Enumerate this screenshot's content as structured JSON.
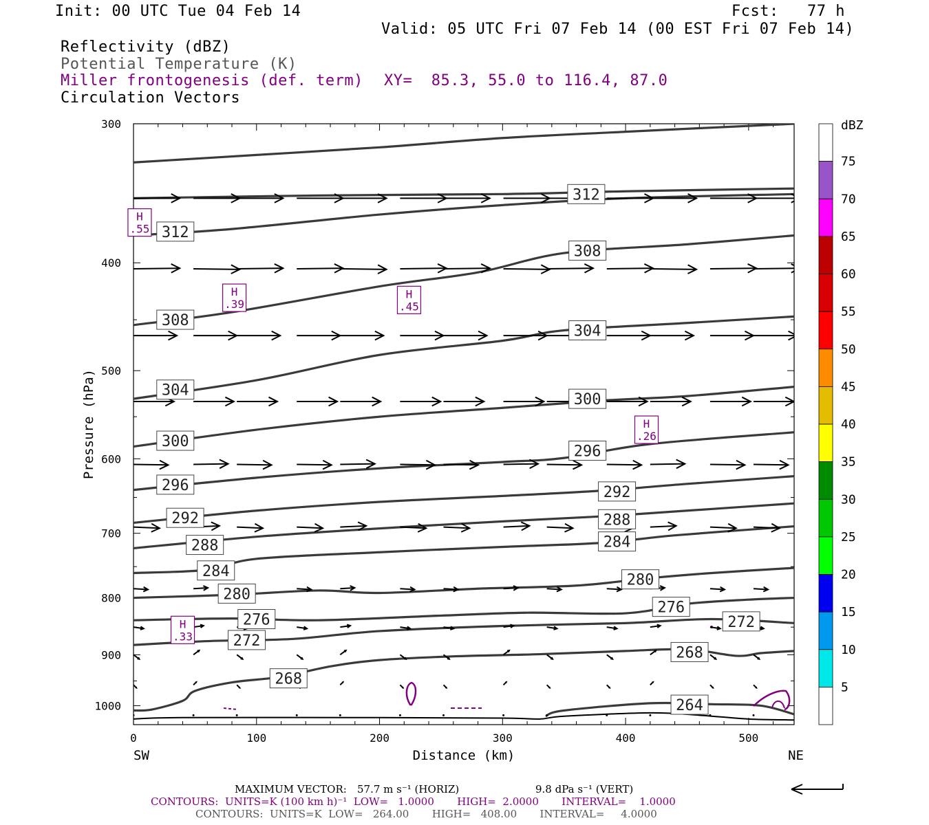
{
  "header": {
    "init": "Init: 00 UTC Tue 04 Feb 14",
    "fcst": "Fcst:   77 h",
    "valid": "Valid: 05 UTC Fri 07 Feb 14 (00 EST Fri 07 Feb 14)",
    "field1": "Reflectivity (dBZ)",
    "field2": "Potential Temperature (K)",
    "field3": "Miller frontogenesis (def. term)",
    "xy": "XY=  85.3, 55.0 to 116.4, 87.0",
    "field4": "Circulation Vectors"
  },
  "footer": {
    "max_vector_label": "MAXIMUM VECTOR:",
    "max_vector_horiz": "57.7 m s⁻¹ (HORIZ)",
    "max_vector_vert": "9.8 dPa s⁻¹ (VERT)",
    "contours1": "CONTOURS:  UNITS=K (100 km h)⁻¹  LOW=   1.0000       HIGH=  2.0000       INTERVAL=    1.0000",
    "contours2": "CONTOURS:  UNITS=K  LOW=   264.00       HIGH=   408.00       INTERVAL=     4.0000"
  },
  "colors": {
    "theta": "#3a3a3a",
    "fronto": "#800080",
    "vector": "#000000"
  },
  "chart_data": {
    "type": "cross-section",
    "xlabel": "Distance (km)",
    "ylabel": "Pressure (hPa)",
    "xlim": [
      0,
      537
    ],
    "ylim": [
      1040,
      300
    ],
    "y_scale": "log",
    "x_ticks": [
      0,
      100,
      200,
      300,
      400,
      500
    ],
    "y_ticks": [
      300,
      400,
      500,
      600,
      700,
      800,
      900,
      1000
    ],
    "x_end_labels": [
      "SW",
      "NE"
    ],
    "colorbar": {
      "unit": "dBZ",
      "levels": [
        "5",
        "10",
        "15",
        "20",
        "25",
        "30",
        "35",
        "40",
        "45",
        "50",
        "55",
        "60",
        "65",
        "70",
        "75"
      ],
      "colors": [
        "#ffffff",
        "#00e8e8",
        "#0099ee",
        "#0000f0",
        "#00ff00",
        "#00c800",
        "#008c00",
        "#ffff00",
        "#e6bc00",
        "#ff8c00",
        "#ff0000",
        "#d80000",
        "#bc0000",
        "#ff00ff",
        "#9855c8"
      ]
    },
    "theta_contours": [
      {
        "label": "312",
        "points": [
          [
            0,
            325
          ],
          [
            100,
            320
          ],
          [
            200,
            315
          ],
          [
            300,
            309
          ],
          [
            400,
            305
          ],
          [
            537,
            300
          ]
        ]
      },
      {
        "label": "312",
        "points": [
          [
            0,
            350
          ],
          [
            150,
            348
          ],
          [
            300,
            347
          ],
          [
            400,
            345
          ],
          [
            537,
            343
          ]
        ]
      },
      {
        "label": "308",
        "points": [
          [
            0,
            378
          ],
          [
            80,
            373
          ],
          [
            200,
            362
          ],
          [
            300,
            355
          ],
          [
            400,
            350
          ],
          [
            537,
            347
          ]
        ]
      },
      {
        "label": "308",
        "points": [
          [
            0,
            455
          ],
          [
            80,
            443
          ],
          [
            200,
            420
          ],
          [
            280,
            408
          ],
          [
            350,
            392
          ],
          [
            450,
            385
          ],
          [
            537,
            378
          ]
        ]
      },
      {
        "label": "304",
        "points": [
          [
            0,
            530
          ],
          [
            100,
            510
          ],
          [
            200,
            484
          ],
          [
            300,
            470
          ],
          [
            350,
            460
          ],
          [
            450,
            453
          ],
          [
            537,
            447
          ]
        ]
      },
      {
        "label": "300",
        "points": [
          [
            0,
            585
          ],
          [
            100,
            565
          ],
          [
            200,
            550
          ],
          [
            300,
            540
          ],
          [
            380,
            532
          ],
          [
            450,
            527
          ],
          [
            537,
            517
          ]
        ]
      },
      {
        "label": "296",
        "points": [
          [
            0,
            640
          ],
          [
            100,
            624
          ],
          [
            200,
            612
          ],
          [
            300,
            604
          ],
          [
            350,
            599
          ],
          [
            420,
            582
          ],
          [
            537,
            568
          ]
        ]
      },
      {
        "label": "292",
        "points": [
          [
            0,
            685
          ],
          [
            100,
            668
          ],
          [
            200,
            656
          ],
          [
            300,
            648
          ],
          [
            380,
            641
          ],
          [
            450,
            632
          ],
          [
            537,
            622
          ]
        ]
      },
      {
        "label": "288",
        "points": [
          [
            0,
            722
          ],
          [
            100,
            705
          ],
          [
            200,
            693
          ],
          [
            300,
            683
          ],
          [
            380,
            676
          ],
          [
            450,
            668
          ],
          [
            537,
            658
          ]
        ]
      },
      {
        "label": "284",
        "points": [
          [
            0,
            760
          ],
          [
            60,
            755
          ],
          [
            100,
            738
          ],
          [
            200,
            728
          ],
          [
            300,
            720
          ],
          [
            380,
            714
          ],
          [
            440,
            703
          ],
          [
            537,
            690
          ]
        ]
      },
      {
        "label": "280",
        "points": [
          [
            0,
            800
          ],
          [
            80,
            795
          ],
          [
            150,
            788
          ],
          [
            200,
            792
          ],
          [
            280,
            785
          ],
          [
            360,
            780
          ],
          [
            420,
            768
          ],
          [
            470,
            760
          ],
          [
            537,
            752
          ]
        ]
      },
      {
        "label": "276",
        "points": [
          [
            0,
            838
          ],
          [
            80,
            835
          ],
          [
            150,
            838
          ],
          [
            250,
            830
          ],
          [
            320,
            825
          ],
          [
            400,
            826
          ],
          [
            450,
            810
          ],
          [
            500,
            803
          ],
          [
            537,
            800
          ]
        ]
      },
      {
        "label": "272",
        "points": [
          [
            0,
            882
          ],
          [
            60,
            875
          ],
          [
            130,
            871
          ],
          [
            200,
            857
          ],
          [
            300,
            848
          ],
          [
            400,
            843
          ],
          [
            470,
            836
          ],
          [
            537,
            843
          ]
        ]
      },
      {
        "label": "268",
        "points": [
          [
            0,
            1010
          ],
          [
            15,
            1008
          ],
          [
            40,
            990
          ],
          [
            50,
            970
          ],
          [
            80,
            953
          ],
          [
            120,
            942
          ],
          [
            160,
            922
          ],
          [
            200,
            910
          ],
          [
            260,
            903
          ],
          [
            330,
            899
          ],
          [
            400,
            893
          ],
          [
            450,
            890
          ],
          [
            490,
            902
          ],
          [
            510,
            897
          ],
          [
            537,
            893
          ]
        ]
      },
      {
        "label": "264",
        "points": [
          [
            335,
            1022
          ],
          [
            350,
            1010
          ],
          [
            420,
            995
          ],
          [
            470,
            997
          ],
          [
            510,
            1000
          ],
          [
            537,
            1018
          ]
        ]
      },
      {
        "label": "",
        "points": [
          [
            0,
            1028
          ],
          [
            40,
            1025
          ],
          [
            200,
            1025
          ],
          [
            300,
            1026
          ],
          [
            330,
            1028
          ],
          [
            350,
            1022
          ],
          [
            420,
            1015
          ],
          [
            460,
            1020
          ],
          [
            500,
            1028
          ],
          [
            537,
            1030
          ]
        ]
      }
    ],
    "theta_label_positions_km": [
      {
        "label": "312",
        "x": 368,
        "p": 347
      },
      {
        "label": "312",
        "x": 34,
        "p": 375
      },
      {
        "label": "308",
        "x": 369,
        "p": 390
      },
      {
        "label": "308",
        "x": 34,
        "p": 450
      },
      {
        "label": "304",
        "x": 369,
        "p": 460
      },
      {
        "label": "304",
        "x": 34,
        "p": 520
      },
      {
        "label": "300",
        "x": 369,
        "p": 530
      },
      {
        "label": "300",
        "x": 34,
        "p": 578
      },
      {
        "label": "296",
        "x": 369,
        "p": 590
      },
      {
        "label": "296",
        "x": 34,
        "p": 633
      },
      {
        "label": "292",
        "x": 393,
        "p": 642
      },
      {
        "label": "292",
        "x": 42,
        "p": 678
      },
      {
        "label": "288",
        "x": 393,
        "p": 680
      },
      {
        "label": "288",
        "x": 58,
        "p": 717
      },
      {
        "label": "284",
        "x": 393,
        "p": 712
      },
      {
        "label": "284",
        "x": 67,
        "p": 756
      },
      {
        "label": "280",
        "x": 412,
        "p": 770
      },
      {
        "label": "280",
        "x": 84,
        "p": 793
      },
      {
        "label": "276",
        "x": 437,
        "p": 815
      },
      {
        "label": "276",
        "x": 100,
        "p": 836
      },
      {
        "label": "272",
        "x": 494,
        "p": 840
      },
      {
        "label": "272",
        "x": 92,
        "p": 873
      },
      {
        "label": "268",
        "x": 452,
        "p": 895
      },
      {
        "label": "268",
        "x": 126,
        "p": 945
      },
      {
        "label": "264",
        "x": 452,
        "p": 998
      }
    ],
    "fronto_highs": [
      {
        "x": 5,
        "p": 368,
        "value": ".55"
      },
      {
        "x": 82,
        "p": 430,
        "value": ".39"
      },
      {
        "x": 224,
        "p": 432,
        "value": ".45"
      },
      {
        "x": 417,
        "p": 565,
        "value": ".26"
      },
      {
        "x": 40,
        "p": 855,
        "value": ".33"
      }
    ],
    "vectors": [
      {
        "p": 350,
        "u": 1.6,
        "w": 0.0
      },
      {
        "p": 405,
        "u": 1.6,
        "w": -0.02
      },
      {
        "p": 465,
        "u": 1.5,
        "w": 0.0
      },
      {
        "p": 533,
        "u": 1.4,
        "w": 0.0
      },
      {
        "p": 607,
        "u": 1.2,
        "w": 0.02
      },
      {
        "p": 691,
        "u": 0.9,
        "w": 0.04
      },
      {
        "p": 785,
        "u": 0.5,
        "w": 0.03
      },
      {
        "p": 850,
        "u": 0.35,
        "w": 0.05
      },
      {
        "p": 900,
        "u": 0.2,
        "w": 0.15
      },
      {
        "p": 958,
        "u": 0.1,
        "w": 0.1
      },
      {
        "p": 1020,
        "u": 0.05,
        "w": 0.0
      }
    ]
  }
}
